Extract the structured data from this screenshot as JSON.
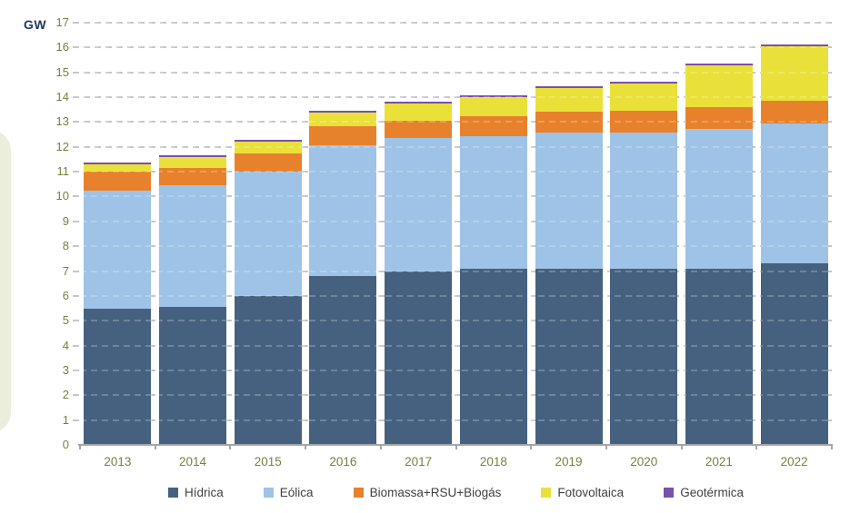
{
  "unit_label": "GW",
  "colors": {
    "axis_tick_text": "#75813E",
    "unit_label_text": "#1F3A60",
    "legend_text": "#404040",
    "gridline": "#C7C7C7",
    "axis_line": "#A6A6A6",
    "page_decoration": "#EAEEDB"
  },
  "chart_data": {
    "type": "bar",
    "stacked": true,
    "title": "",
    "xlabel": "",
    "ylabel": "GW",
    "ylim": [
      0,
      17
    ],
    "yticks": [
      0,
      1,
      2,
      3,
      4,
      5,
      6,
      7,
      8,
      9,
      10,
      11,
      12,
      13,
      14,
      15,
      16,
      17
    ],
    "grid": "horizontal-dashed",
    "legend_position": "bottom",
    "categories": [
      "2013",
      "2014",
      "2015",
      "2016",
      "2017",
      "2018",
      "2019",
      "2020",
      "2021",
      "2022"
    ],
    "series": [
      {
        "name": "Hídrica",
        "color": "#45617F",
        "values": [
          5.5,
          5.55,
          6.0,
          6.8,
          7.0,
          7.1,
          7.1,
          7.1,
          7.1,
          7.3
        ]
      },
      {
        "name": "Eólica",
        "color": "#9EC3E6",
        "values": [
          4.75,
          4.9,
          5.0,
          5.27,
          5.36,
          5.33,
          5.46,
          5.46,
          5.61,
          5.63
        ]
      },
      {
        "name": "Biomassa+RSU+Biogás",
        "color": "#E8812C",
        "values": [
          0.75,
          0.7,
          0.75,
          0.75,
          0.7,
          0.82,
          0.86,
          0.9,
          0.89,
          0.92
        ]
      },
      {
        "name": "Fotovoltaica",
        "color": "#E9E139",
        "values": [
          0.3,
          0.45,
          0.45,
          0.58,
          0.67,
          0.76,
          0.96,
          1.09,
          1.68,
          2.2
        ]
      },
      {
        "name": "Geotérmica",
        "color": "#7A50A8",
        "values": [
          0.03,
          0.03,
          0.03,
          0.03,
          0.03,
          0.03,
          0.03,
          0.03,
          0.03,
          0.03
        ]
      }
    ],
    "totals": [
      11.33,
      11.63,
      12.23,
      13.43,
      13.76,
      14.04,
      14.41,
      14.58,
      15.31,
      16.08
    ]
  }
}
